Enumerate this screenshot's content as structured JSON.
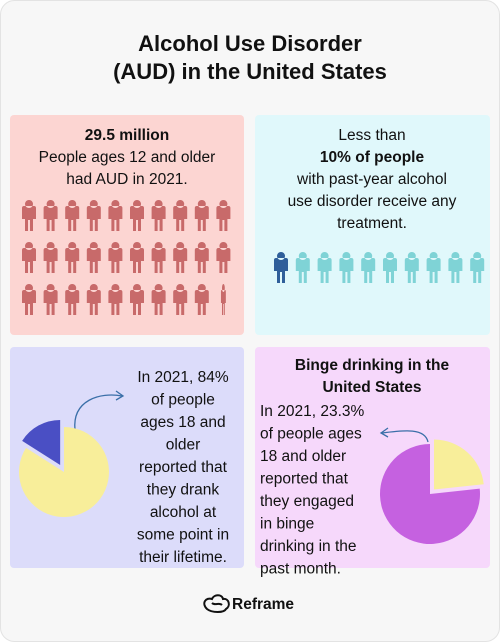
{
  "title": [
    "Alcohol Use Disorder",
    "(AUD) in the United States"
  ],
  "panel_1": {
    "headline": "29.5 million",
    "lines": [
      "People ages 12 and older",
      "had AUD in 2021."
    ]
  },
  "panel_2": {
    "lines_before": [
      "Less than"
    ],
    "headline": "10% of people",
    "lines_after": [
      "with past-year alcohol",
      "use disorder receive any",
      "treatment."
    ]
  },
  "panel_3": {
    "lines": [
      "In 2021, 84%",
      "of people",
      "ages 18 and",
      "older",
      "reported that",
      "they drank",
      "alcohol at",
      "some point in",
      "their lifetime."
    ],
    "pie": {
      "value": 84,
      "color": "#f8ee9a",
      "rest_color": "#4a4fc4"
    }
  },
  "panel_4": {
    "heading": [
      "Binge drinking in the",
      "United States"
    ],
    "lines": [
      "In 2021, 23.3%",
      "of people ages",
      "18 and older",
      "reported that",
      "they engaged",
      "in binge",
      "drinking in the",
      "past month."
    ],
    "pie": {
      "value": 23.3,
      "color": "#f8ee9a",
      "rest_color": "#c561e0"
    }
  },
  "footer": {
    "brand": "Reframe"
  }
}
